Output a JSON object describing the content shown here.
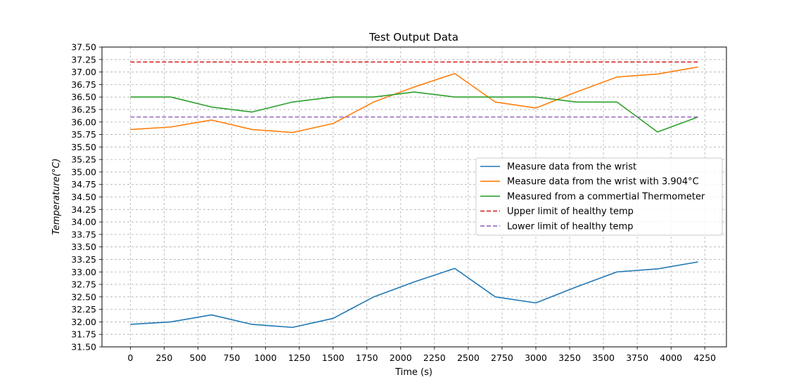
{
  "chart_data": {
    "type": "line",
    "title": "Test Output Data",
    "xlabel": "Time (s)",
    "ylabel": "Temperature(°C)",
    "xlim": [
      -210,
      4410
    ],
    "ylim": [
      31.5,
      37.5
    ],
    "xticks": [
      0,
      250,
      500,
      750,
      1000,
      1250,
      1500,
      1750,
      2000,
      2250,
      2500,
      2750,
      3000,
      3250,
      3500,
      3750,
      4000,
      4250
    ],
    "yticks": [
      31.5,
      31.75,
      32.0,
      32.25,
      32.5,
      32.75,
      33.0,
      33.25,
      33.5,
      33.75,
      34.0,
      34.25,
      34.5,
      34.75,
      35.0,
      35.25,
      35.5,
      35.75,
      36.0,
      36.25,
      36.5,
      36.75,
      37.0,
      37.25,
      37.5
    ],
    "grid": true,
    "grid_style": "dashed",
    "legend_position": "center-right",
    "x": [
      0,
      300,
      600,
      900,
      1200,
      1500,
      1800,
      2100,
      2400,
      2700,
      3000,
      3300,
      3600,
      3900,
      4200
    ],
    "series": [
      {
        "name": "Measure data from the wrist",
        "color": "#1f77b4",
        "dash": "solid",
        "values": [
          31.95,
          32.0,
          32.14,
          31.95,
          31.89,
          32.07,
          32.5,
          32.8,
          33.07,
          32.5,
          32.38,
          32.7,
          33.0,
          33.06,
          33.2
        ]
      },
      {
        "name": "Measure data from the wrist with 3.904°C",
        "color": "#ff7f0e",
        "dash": "solid",
        "values": [
          35.85,
          35.9,
          36.04,
          35.85,
          35.79,
          35.97,
          36.4,
          36.7,
          36.97,
          36.4,
          36.28,
          36.6,
          36.9,
          36.96,
          37.1
        ]
      },
      {
        "name": "Measured from a commertial Thermometer",
        "color": "#2ca02c",
        "dash": "solid",
        "values": [
          36.5,
          36.5,
          36.3,
          36.2,
          36.4,
          36.5,
          36.5,
          36.6,
          36.5,
          36.5,
          36.5,
          36.4,
          36.4,
          35.8,
          36.1
        ]
      },
      {
        "name": "Upper limit of healthy temp",
        "color": "#d62728",
        "dash": "dashed",
        "values": [
          37.2,
          37.2,
          37.2,
          37.2,
          37.2,
          37.2,
          37.2,
          37.2,
          37.2,
          37.2,
          37.2,
          37.2,
          37.2,
          37.2,
          37.2
        ]
      },
      {
        "name": "Lower limit of healthy temp",
        "color": "#9467bd",
        "dash": "dashed",
        "values": [
          36.1,
          36.1,
          36.1,
          36.1,
          36.1,
          36.1,
          36.1,
          36.1,
          36.1,
          36.1,
          36.1,
          36.1,
          36.1,
          36.1,
          36.1
        ]
      }
    ]
  }
}
